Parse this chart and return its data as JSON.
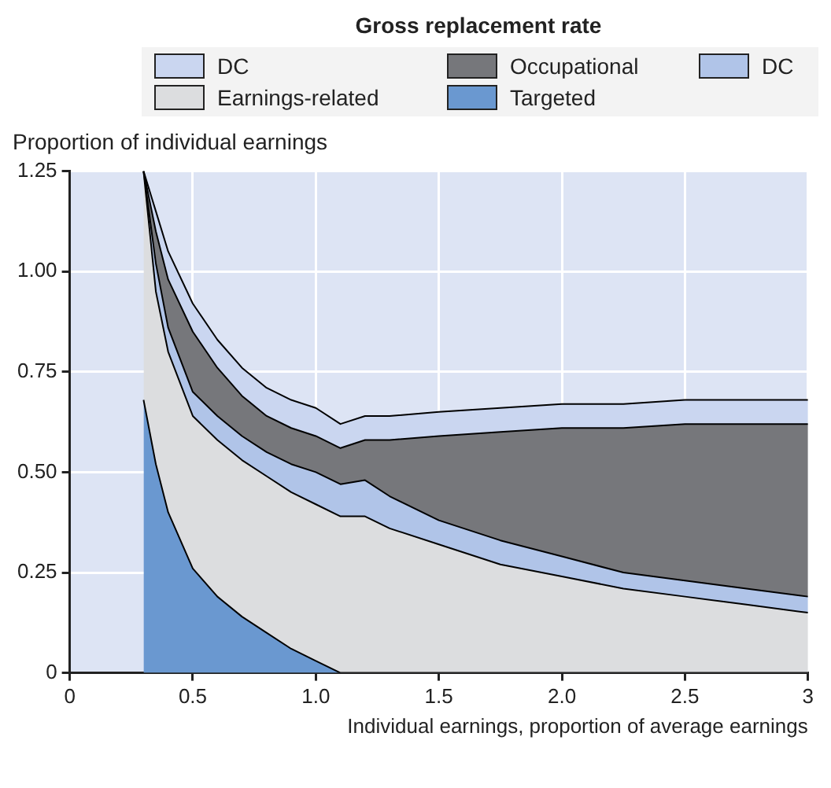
{
  "chart_data": {
    "type": "area",
    "title": "Gross replacement rate",
    "xlabel": "Individual earnings, proportion of average earnings",
    "ylabel": "Proportion of individual earnings",
    "stacked": true,
    "legend": "top",
    "grid": true,
    "x": [
      0.3,
      0.35,
      0.4,
      0.5,
      0.6,
      0.7,
      0.8,
      0.9,
      1.0,
      1.1,
      1.2,
      1.3,
      1.5,
      1.75,
      2.0,
      2.25,
      2.5,
      2.75,
      3.0
    ],
    "series": [
      {
        "name": "Targeted",
        "color": "#6a98d0",
        "values": [
          0.68,
          0.52,
          0.4,
          0.26,
          0.19,
          0.14,
          0.1,
          0.06,
          0.03,
          0,
          0,
          0,
          0,
          0,
          0,
          0,
          0,
          0,
          0
        ]
      },
      {
        "name": "Earnings-related",
        "color": "#dcdddf",
        "values": [
          0.57,
          0.43,
          0.4,
          0.38,
          0.39,
          0.39,
          0.39,
          0.39,
          0.39,
          0.39,
          0.39,
          0.36,
          0.32,
          0.27,
          0.24,
          0.21,
          0.19,
          0.17,
          0.15
        ]
      },
      {
        "name": "DC",
        "color": "#b0c4e8",
        "values": [
          0,
          0.07,
          0.06,
          0.06,
          0.06,
          0.06,
          0.06,
          0.07,
          0.08,
          0.08,
          0.09,
          0.08,
          0.06,
          0.06,
          0.05,
          0.04,
          0.04,
          0.04,
          0.04
        ]
      },
      {
        "name": "Occupational",
        "color": "#76777b",
        "values": [
          0,
          0.08,
          0.12,
          0.15,
          0.12,
          0.1,
          0.09,
          0.09,
          0.09,
          0.09,
          0.1,
          0.14,
          0.21,
          0.27,
          0.32,
          0.36,
          0.39,
          0.41,
          0.43
        ]
      },
      {
        "name": "DC",
        "color": "#cad6f0",
        "values": [
          0,
          0.05,
          0.07,
          0.07,
          0.07,
          0.07,
          0.07,
          0.07,
          0.07,
          0.06,
          0.06,
          0.06,
          0.06,
          0.06,
          0.06,
          0.06,
          0.06,
          0.06,
          0.06
        ]
      }
    ],
    "xlim": [
      0,
      3
    ],
    "xticks": [
      0,
      0.5,
      {
        "value": 1,
        "label": "1.0"
      },
      1.5,
      {
        "value": 2,
        "label": "2.0"
      },
      2.5,
      3
    ],
    "ylim": [
      0,
      1.25
    ],
    "yticks": [
      0,
      0.25,
      {
        "value": 0.5,
        "label": "0.50"
      },
      0.75,
      {
        "value": 1,
        "label": "1.00"
      },
      1.25
    ]
  }
}
